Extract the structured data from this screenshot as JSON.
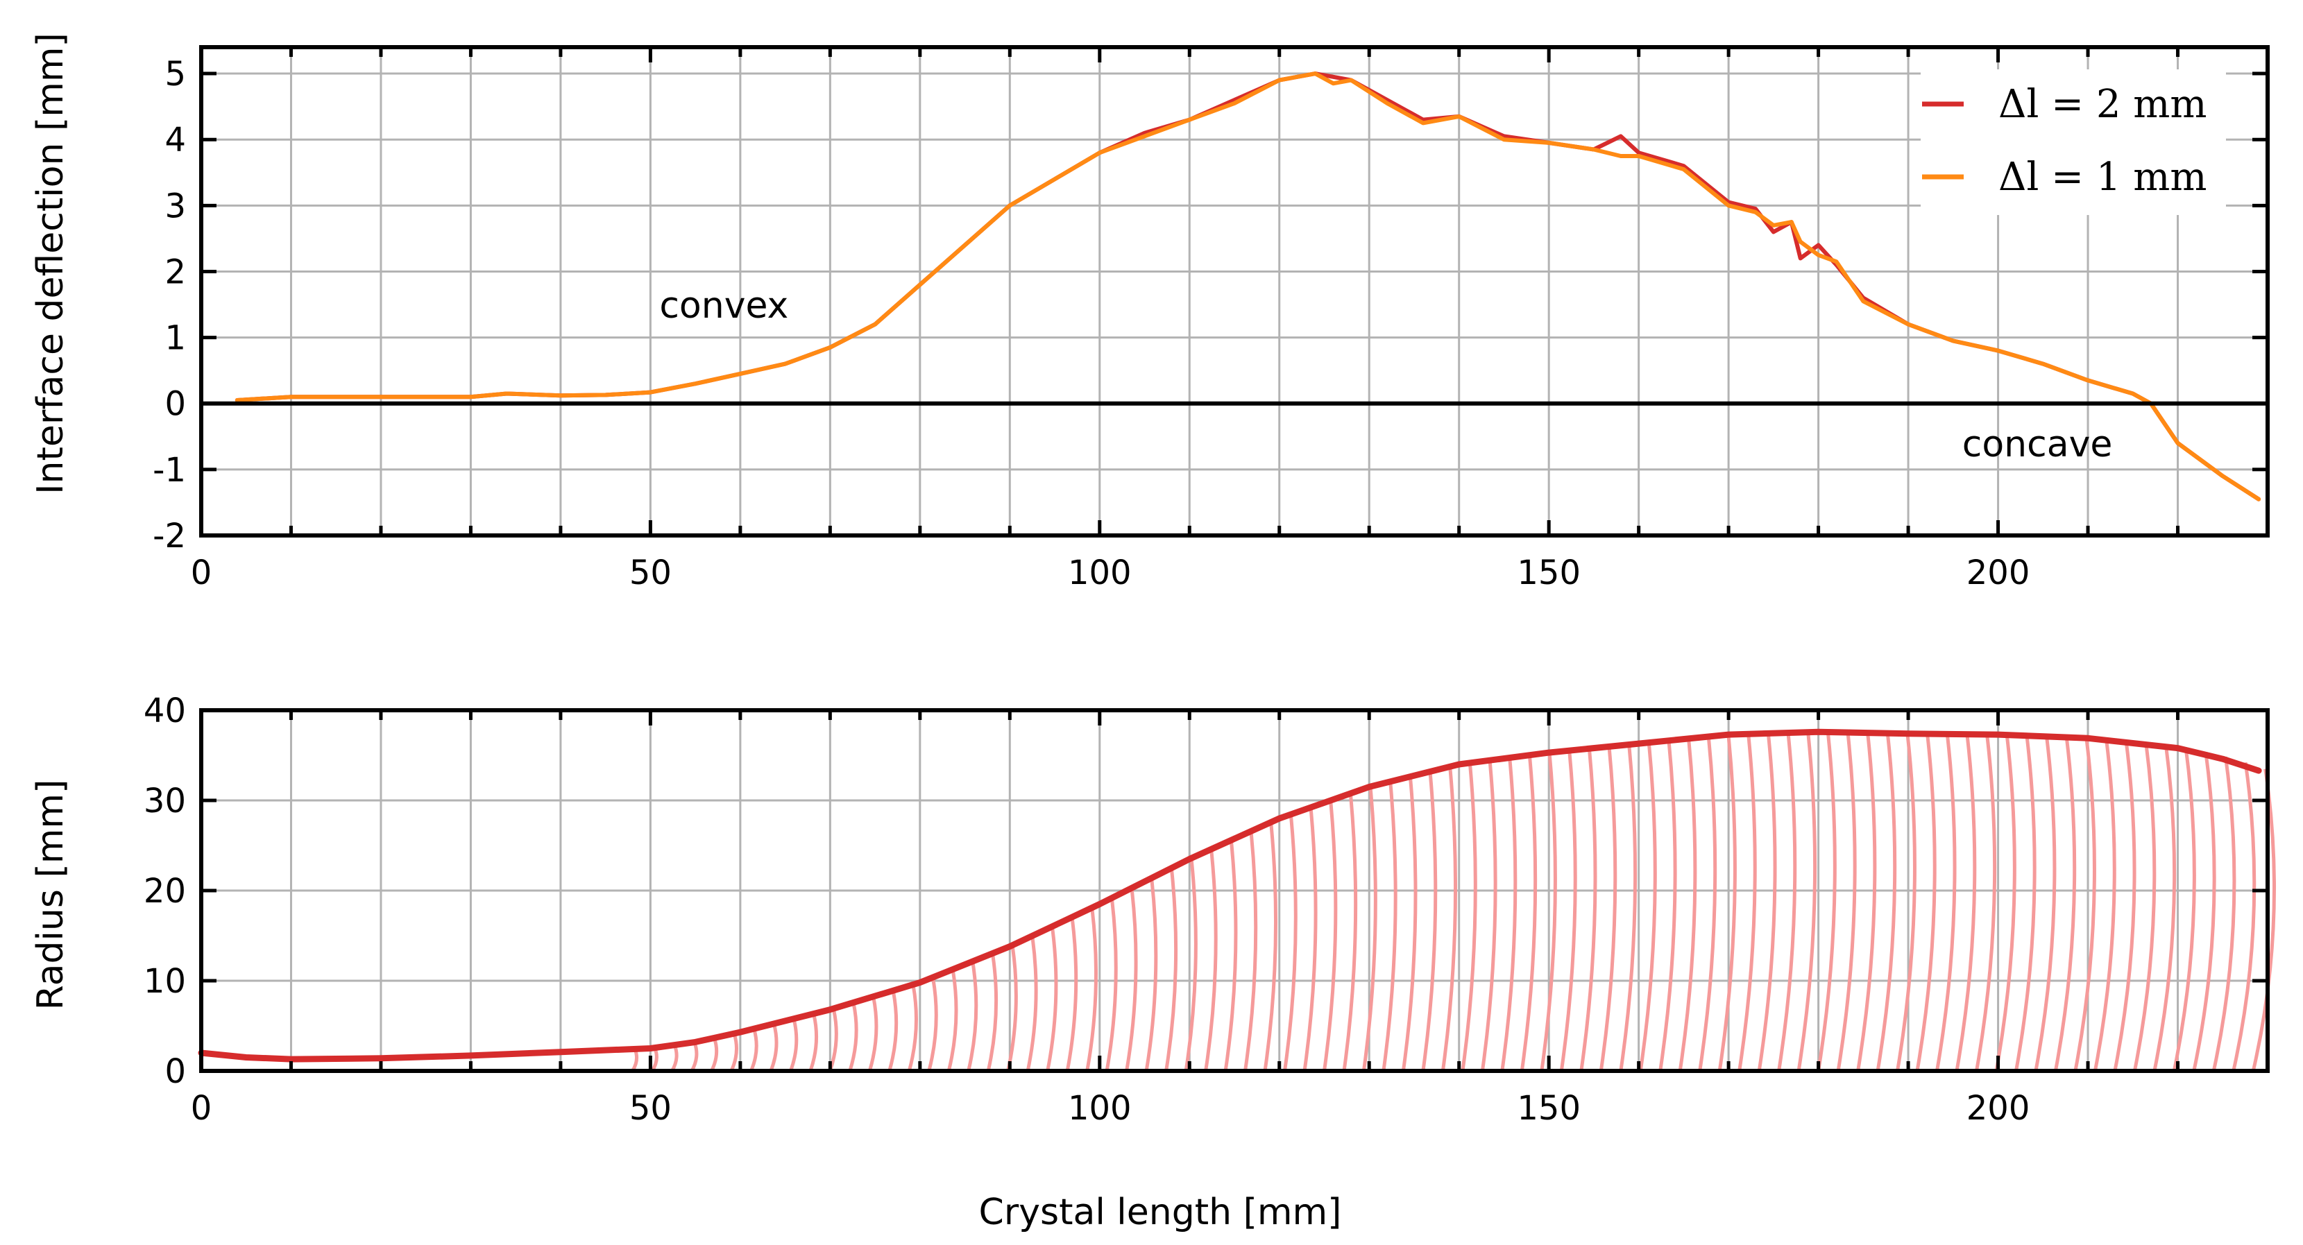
{
  "colors": {
    "series1": "#d62c2c",
    "series2": "#ff8a14",
    "rib": "#f59a9a",
    "grid": "#b3b3b3"
  },
  "chart_data": [
    {
      "type": "line",
      "id": "deflection",
      "ylabel": "Interface deflection [mm]",
      "xlim": [
        0,
        230
      ],
      "ylim": [
        -2,
        5.4
      ],
      "x_ticks": [
        0,
        50,
        100,
        150,
        200
      ],
      "y_ticks": [
        -2,
        -1,
        0,
        1,
        2,
        3,
        4,
        5
      ],
      "x_minor_step": 10,
      "annotations": [
        {
          "text": "convex",
          "x": 51,
          "y": 1.3
        },
        {
          "text": "concave",
          "x": 196,
          "y": -0.8
        }
      ],
      "legend_position": "top-right",
      "legend_labels": [
        "Δl = 2 mm",
        "Δl = 1 mm"
      ],
      "series": [
        {
          "name": "Δl = 2 mm",
          "x": [
            4,
            10,
            20,
            30,
            34,
            40,
            45,
            50,
            55,
            60,
            65,
            70,
            75,
            80,
            85,
            90,
            95,
            100,
            105,
            110,
            115,
            120,
            124,
            128,
            132,
            136,
            140,
            145,
            150,
            155,
            158,
            160,
            165,
            170,
            173,
            175,
            177,
            178,
            180,
            182,
            185,
            190,
            195,
            200,
            205,
            210,
            215,
            217,
            220,
            225,
            229
          ],
          "y": [
            0.05,
            0.1,
            0.1,
            0.1,
            0.15,
            0.12,
            0.13,
            0.17,
            0.3,
            0.45,
            0.6,
            0.85,
            1.2,
            1.8,
            2.4,
            3.0,
            3.4,
            3.8,
            4.1,
            4.3,
            4.6,
            4.9,
            5.0,
            4.9,
            4.6,
            4.3,
            4.35,
            4.05,
            3.95,
            3.85,
            4.05,
            3.8,
            3.6,
            3.05,
            2.95,
            2.6,
            2.75,
            2.2,
            2.4,
            2.1,
            1.6,
            1.2,
            0.95,
            0.8,
            0.6,
            0.35,
            0.15,
            0.0,
            -0.6,
            -1.1,
            -1.45
          ]
        },
        {
          "name": "Δl = 1 mm",
          "x": [
            4,
            10,
            20,
            30,
            34,
            40,
            45,
            50,
            55,
            60,
            65,
            70,
            75,
            80,
            85,
            90,
            95,
            100,
            105,
            110,
            115,
            120,
            124,
            126,
            128,
            132,
            136,
            140,
            145,
            150,
            155,
            158,
            160,
            165,
            170,
            173,
            175,
            177,
            178,
            180,
            182,
            185,
            190,
            195,
            200,
            205,
            210,
            215,
            217,
            220,
            225,
            229
          ],
          "y": [
            0.05,
            0.1,
            0.1,
            0.1,
            0.15,
            0.12,
            0.13,
            0.17,
            0.3,
            0.45,
            0.6,
            0.85,
            1.2,
            1.8,
            2.4,
            3.0,
            3.4,
            3.8,
            4.05,
            4.3,
            4.55,
            4.9,
            5.0,
            4.85,
            4.9,
            4.55,
            4.25,
            4.35,
            4.0,
            3.95,
            3.85,
            3.75,
            3.75,
            3.55,
            3.0,
            2.9,
            2.7,
            2.75,
            2.45,
            2.25,
            2.15,
            1.55,
            1.2,
            0.95,
            0.8,
            0.6,
            0.35,
            0.15,
            0.0,
            -0.6,
            -1.1,
            -1.45
          ]
        }
      ]
    },
    {
      "type": "line",
      "id": "radius",
      "ylabel": "Radius [mm]",
      "xlabel": "Crystal length [mm]",
      "xlim": [
        0,
        230
      ],
      "ylim": [
        0,
        40
      ],
      "x_ticks": [
        0,
        50,
        100,
        150,
        200
      ],
      "y_ticks": [
        0,
        10,
        20,
        30,
        40
      ],
      "x_minor_step": 10,
      "rib_spacing": 2.2,
      "series": [
        {
          "name": "Radius",
          "x": [
            0,
            5,
            10,
            20,
            30,
            40,
            50,
            55,
            60,
            70,
            80,
            90,
            100,
            110,
            120,
            130,
            140,
            150,
            160,
            170,
            180,
            190,
            200,
            210,
            220,
            225,
            229
          ],
          "y": [
            2.0,
            1.5,
            1.3,
            1.4,
            1.7,
            2.1,
            2.5,
            3.2,
            4.3,
            6.8,
            9.8,
            13.8,
            18.5,
            23.5,
            28.0,
            31.5,
            34.0,
            35.3,
            36.3,
            37.3,
            37.6,
            37.4,
            37.3,
            36.9,
            35.8,
            34.6,
            33.3
          ]
        }
      ]
    }
  ]
}
